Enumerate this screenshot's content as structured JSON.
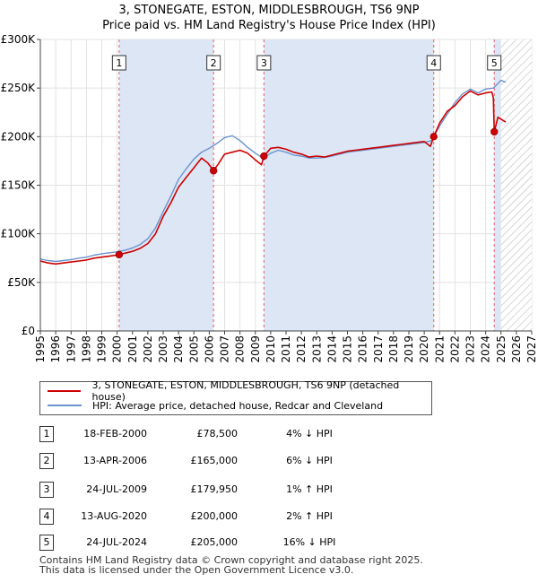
{
  "title_line1": "3, STONEGATE, ESTON, MIDDLESBROUGH, TS6 9NP",
  "title_line2": "Price paid vs. HM Land Registry's House Price Index (HPI)",
  "legend": {
    "property": "3, STONEGATE, ESTON, MIDDLESBROUGH, TS6 9NP (detached house)",
    "hpi": "HPI: Average price, detached house, Redcar and Cleveland"
  },
  "colors": {
    "property": "#cc0000",
    "hpi": "#6a93cf",
    "shade": "#dde6f5",
    "marker_dash": "#e06060"
  },
  "sales": [
    {
      "num": "1",
      "date": "18-FEB-2000",
      "price": "£78,500",
      "hpi": "4% ↓ HPI"
    },
    {
      "num": "2",
      "date": "13-APR-2006",
      "price": "£165,000",
      "hpi": "6% ↓ HPI"
    },
    {
      "num": "3",
      "date": "24-JUL-2009",
      "price": "£179,950",
      "hpi": "1% ↑ HPI"
    },
    {
      "num": "4",
      "date": "13-AUG-2020",
      "price": "£200,000",
      "hpi": "2% ↑ HPI"
    },
    {
      "num": "5",
      "date": "24-JUL-2024",
      "price": "£205,000",
      "hpi": "16% ↓ HPI"
    }
  ],
  "footer_line1": "Contains HM Land Registry data © Crown copyright and database right 2025.",
  "footer_line2": "This data is licensed under the Open Government Licence v3.0.",
  "chart_data": {
    "type": "line",
    "title": "3, STONEGATE, ESTON, MIDDLESBROUGH, TS6 9NP — Price paid vs. HM Land Registry's House Price Index (HPI)",
    "xlabel": "",
    "ylabel": "",
    "xlim": [
      1995,
      2027
    ],
    "ylim": [
      0,
      300000
    ],
    "x_ticks": [
      "1995",
      "1996",
      "1997",
      "1998",
      "1999",
      "2000",
      "2001",
      "2002",
      "2003",
      "2004",
      "2005",
      "2006",
      "2007",
      "2008",
      "2009",
      "2010",
      "2011",
      "2012",
      "2013",
      "2014",
      "2015",
      "2016",
      "2017",
      "2018",
      "2019",
      "2020",
      "2021",
      "2022",
      "2023",
      "2024",
      "2025",
      "2026",
      "2027"
    ],
    "y_ticks": [
      {
        "value": 0,
        "label": "£0"
      },
      {
        "value": 50000,
        "label": "£50K"
      },
      {
        "value": 100000,
        "label": "£100K"
      },
      {
        "value": 150000,
        "label": "£150K"
      },
      {
        "value": 200000,
        "label": "£200K"
      },
      {
        "value": 250000,
        "label": "£250K"
      },
      {
        "value": 300000,
        "label": "£300K"
      }
    ],
    "shaded_ranges": [
      [
        2000.13,
        2006.28
      ],
      [
        2009.56,
        2020.62
      ],
      [
        2024.56,
        2025.0
      ]
    ],
    "forecast_start": 2025.0,
    "sale_markers": [
      {
        "label": "1",
        "x": 2000.13,
        "y": 78500
      },
      {
        "label": "2",
        "x": 2006.28,
        "y": 165000
      },
      {
        "label": "3",
        "x": 2009.56,
        "y": 179950
      },
      {
        "label": "4",
        "x": 2020.62,
        "y": 200000
      },
      {
        "label": "5",
        "x": 2024.56,
        "y": 205000
      }
    ],
    "series": [
      {
        "name": "3, STONEGATE, ESTON, MIDDLESBROUGH, TS6 9NP (detached house)",
        "x": [
          1995.0,
          1995.5,
          1996.0,
          1996.5,
          1997.0,
          1997.5,
          1998.0,
          1998.5,
          1999.0,
          1999.5,
          2000.13,
          2000.5,
          2001.0,
          2001.5,
          2002.0,
          2002.5,
          2003.0,
          2003.5,
          2004.0,
          2004.5,
          2005.0,
          2005.5,
          2005.9,
          2006.28,
          2006.6,
          2007.0,
          2007.5,
          2008.0,
          2008.5,
          2009.0,
          2009.4,
          2009.56,
          2010.0,
          2010.5,
          2011.0,
          2011.5,
          2012.0,
          2012.5,
          2013.0,
          2013.5,
          2014.0,
          2014.5,
          2015.0,
          2015.5,
          2016.0,
          2016.5,
          2017.0,
          2017.5,
          2018.0,
          2018.5,
          2019.0,
          2019.5,
          2020.0,
          2020.4,
          2020.62,
          2021.0,
          2021.5,
          2022.0,
          2022.5,
          2023.0,
          2023.5,
          2024.0,
          2024.4,
          2024.5,
          2024.56,
          2024.8,
          2025.0,
          2025.3
        ],
        "values": [
          72000,
          70000,
          69000,
          70000,
          71000,
          72000,
          73000,
          75000,
          76000,
          77000,
          78500,
          80000,
          82000,
          85000,
          90000,
          100000,
          118000,
          132000,
          148000,
          158000,
          168000,
          178000,
          173000,
          165000,
          172000,
          182000,
          184000,
          186000,
          183000,
          176000,
          171000,
          179950,
          188000,
          189000,
          187000,
          184000,
          182000,
          179000,
          180000,
          179000,
          181000,
          183000,
          185000,
          186000,
          187000,
          188000,
          189000,
          190000,
          191000,
          192000,
          193000,
          194000,
          195000,
          190000,
          200000,
          214000,
          226000,
          232000,
          241000,
          247000,
          243000,
          245000,
          246000,
          240000,
          205000,
          220000,
          218000,
          215000
        ]
      },
      {
        "name": "HPI: Average price, detached house, Redcar and Cleveland",
        "x": [
          1995.0,
          1995.5,
          1996.0,
          1996.5,
          1997.0,
          1997.5,
          1998.0,
          1998.5,
          1999.0,
          1999.5,
          2000.0,
          2000.5,
          2001.0,
          2001.5,
          2002.0,
          2002.5,
          2003.0,
          2003.5,
          2004.0,
          2004.5,
          2005.0,
          2005.5,
          2006.0,
          2006.5,
          2007.0,
          2007.5,
          2008.0,
          2008.5,
          2009.0,
          2009.5,
          2010.0,
          2010.5,
          2011.0,
          2011.5,
          2012.0,
          2012.5,
          2013.0,
          2013.5,
          2014.0,
          2014.5,
          2015.0,
          2015.5,
          2016.0,
          2016.5,
          2017.0,
          2017.5,
          2018.0,
          2018.5,
          2019.0,
          2019.5,
          2020.0,
          2020.5,
          2021.0,
          2021.5,
          2022.0,
          2022.5,
          2023.0,
          2023.5,
          2024.0,
          2024.5,
          2025.0,
          2025.3
        ],
        "values": [
          74000,
          72500,
          71500,
          72500,
          73500,
          75000,
          76000,
          78000,
          79500,
          80500,
          81500,
          83000,
          85500,
          89000,
          95000,
          106000,
          123000,
          139000,
          156000,
          167000,
          177000,
          184000,
          188000,
          193000,
          199000,
          201000,
          196000,
          189000,
          183000,
          178000,
          183000,
          186000,
          184000,
          181000,
          180000,
          178000,
          178000,
          178500,
          180000,
          182000,
          184000,
          185000,
          186000,
          187000,
          188000,
          189000,
          190000,
          191000,
          192000,
          193000,
          194000,
          196000,
          211000,
          223000,
          235000,
          244000,
          249000,
          245000,
          249000,
          250000,
          258000,
          256000
        ]
      }
    ]
  }
}
